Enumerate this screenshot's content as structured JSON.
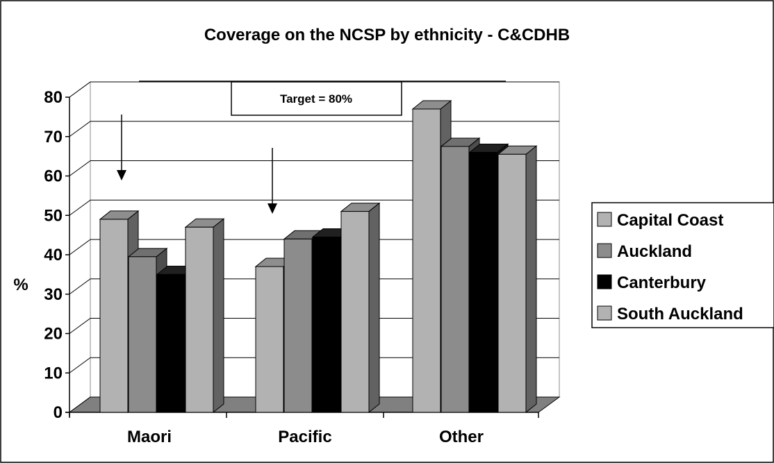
{
  "chart_data": {
    "type": "bar",
    "title": "Coverage on the NCSP by ethnicity - C&CDHB",
    "xlabel": "",
    "ylabel": "%",
    "ylim": [
      0,
      80
    ],
    "yticks": [
      0,
      10,
      20,
      30,
      40,
      50,
      60,
      70,
      80
    ],
    "categories": [
      "Maori",
      "Pacific",
      "Other"
    ],
    "series": [
      {
        "name": "Capital Coast",
        "values": [
          49,
          37,
          77
        ],
        "color": "#b2b2b2"
      },
      {
        "name": "Auckland",
        "values": [
          39.5,
          44,
          67.5
        ],
        "color": "#8c8c8c"
      },
      {
        "name": "Canterbury",
        "values": [
          35,
          44.5,
          66
        ],
        "color": "#000000"
      },
      {
        "name": "South Auckland",
        "values": [
          47,
          51,
          65.5
        ],
        "color": "#b2b2b2"
      }
    ],
    "annotation": "Target = 80%",
    "legend_position": "right",
    "grid": true,
    "style": "3d"
  }
}
